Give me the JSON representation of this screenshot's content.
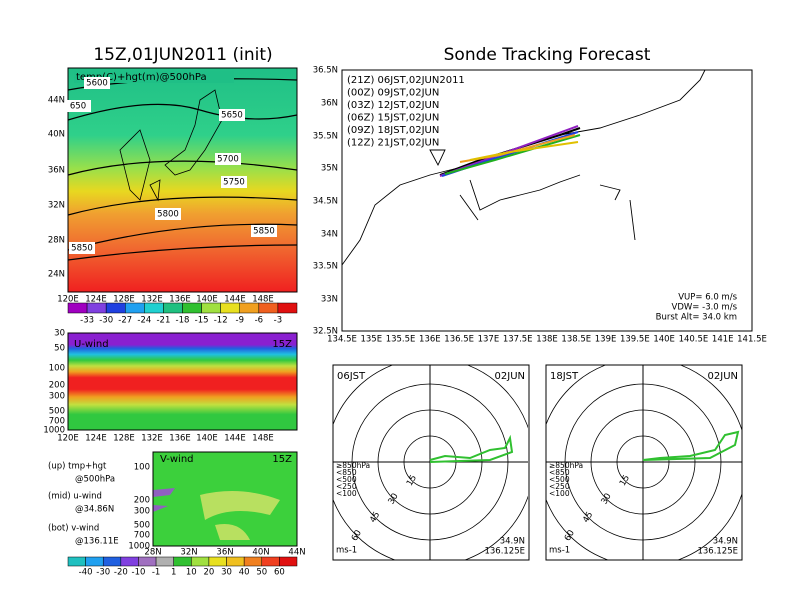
{
  "left_panel": {
    "title": "15Z,01JUN2011 (init)",
    "map_label": "temp(C)+hgt(m)@500hPa",
    "lat_labels": [
      "44N",
      "40N",
      "36N",
      "32N",
      "28N",
      "24N"
    ],
    "lon_labels": [
      "120E",
      "124E",
      "128E",
      "132E",
      "136E",
      "140E",
      "144E",
      "148E"
    ],
    "contour_labels": [
      "5600",
      "650",
      "5650",
      "5700",
      "5750",
      "5800",
      "5850",
      "5850"
    ],
    "colorbar_labels": [
      "-33",
      "-30",
      "-27",
      "-24",
      "-21",
      "-18",
      "-15",
      "-12",
      "-9",
      "-6",
      "-3"
    ]
  },
  "u_wind": {
    "title": "U-wind",
    "time": "15Z",
    "pressure_labels": [
      "30",
      "50",
      "100",
      "200",
      "300",
      "500",
      "700",
      "1000"
    ],
    "lon_labels": [
      "120E",
      "124E",
      "128E",
      "132E",
      "136E",
      "140E",
      "144E",
      "148E"
    ]
  },
  "v_wind": {
    "title": "V-wind",
    "time": "15Z",
    "pressure_labels": [
      "100",
      "200",
      "300",
      "500",
      "700",
      "1000"
    ],
    "lat_labels": [
      "28N",
      "32N",
      "36N",
      "40N",
      "44N"
    ],
    "colorbar_labels": [
      "-40",
      "-30",
      "-20",
      "-10",
      "-1",
      "1",
      "10",
      "20",
      "30",
      "40",
      "50",
      "60"
    ]
  },
  "notes": [
    "(up) tmp+hgt",
    "@500hPa",
    "(mid) u-wind",
    "@34.86N",
    "(bot) v-wind",
    "@136.11E"
  ],
  "track": {
    "title": "Sonde Tracking Forecast",
    "legend": [
      "(21Z) 06JST,02JUN2011",
      "(00Z) 09JST,02JUN",
      "(03Z) 12JST,02JUN",
      "(06Z) 15JST,02JUN",
      "(09Z) 18JST,02JUN",
      "(12Z) 21JST,02JUN"
    ],
    "lat_labels": [
      "36.5N",
      "36N",
      "35.5N",
      "35N",
      "34.5N",
      "34N",
      "33.5N",
      "33N",
      "32.5N"
    ],
    "lon_labels": [
      "134.5E",
      "135E",
      "135.5E",
      "136E",
      "136.5E",
      "137E",
      "137.5E",
      "138E",
      "138.5E",
      "139E",
      "139.5E",
      "140E",
      "140.5E",
      "141E",
      "141.5E"
    ],
    "params": [
      "VUP= 6.0 m/s",
      "VDW= -3.0 m/s",
      "Burst Alt= 34.0 km"
    ]
  },
  "hodographs": [
    {
      "time": "06JST",
      "date": "02JUN",
      "legend": [
        "≥850hPa",
        "<850",
        "<500",
        "<250",
        "<100"
      ],
      "ring_labels": [
        "15",
        "30",
        "45",
        "60"
      ],
      "unit": "ms-1",
      "lat": "34.9N",
      "lon": "136.125E"
    },
    {
      "time": "18JST",
      "date": "02JUN",
      "legend": [
        "≥850hPa",
        "<850",
        "<500",
        "<250",
        "<100"
      ],
      "ring_labels": [
        "15",
        "30",
        "45",
        "60"
      ],
      "unit": "ms-1",
      "lat": "34.9N",
      "lon": "136.125E"
    }
  ]
}
